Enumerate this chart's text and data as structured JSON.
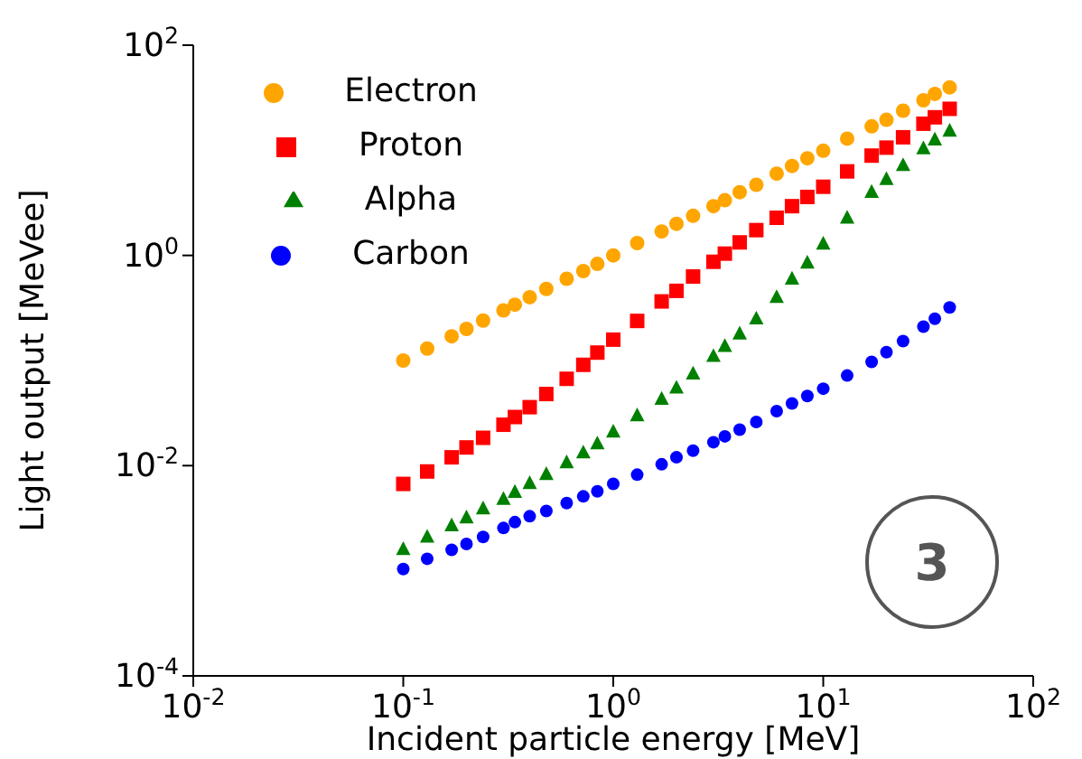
{
  "chart_data": {
    "type": "scatter",
    "xlabel": "Incident particle energy [MeV]",
    "ylabel": "Light output [MeVee]",
    "log": "xy",
    "grid": false,
    "legend": "top left",
    "x": [
      0.1,
      0.13,
      0.17,
      0.2,
      0.24,
      0.3,
      0.34,
      0.4,
      0.48,
      0.6,
      0.72,
      0.84,
      1,
      1.3,
      1.7,
      2,
      2.4,
      3,
      3.4,
      4,
      4.8,
      6,
      7.1,
      8.4,
      10,
      13,
      17,
      20,
      24,
      30,
      34,
      40
    ],
    "xlim": [
      0.01,
      100
    ],
    "xticks": [
      {
        "value": 0.01,
        "label": "10$^{-2}$"
      },
      {
        "value": 0.1,
        "label": "10$^{-1}$"
      },
      {
        "value": 1,
        "label": "10$^{0}$"
      },
      {
        "value": 10,
        "label": "10$^{1}$"
      },
      {
        "value": 100,
        "label": "10$^{2}$"
      }
    ],
    "ylim": [
      0.0001,
      100
    ],
    "yticks": [
      {
        "value": 0.0001,
        "label": "10$^{-4}$"
      },
      {
        "value": 0.01,
        "label": "10$^{-2}$"
      },
      {
        "value": 1,
        "label": "10$^{0}$"
      },
      {
        "value": 100,
        "label": "10$^{2}$"
      }
    ],
    "series": [
      {
        "name": "Electron",
        "color": "#ffa500",
        "marker": "circle",
        "values": [
          0.1,
          0.13,
          0.17,
          0.2,
          0.24,
          0.3,
          0.34,
          0.4,
          0.48,
          0.6,
          0.71,
          0.83,
          1,
          1.31,
          1.69,
          2,
          2.38,
          2.94,
          3.35,
          4,
          4.7,
          6,
          7.1,
          8.4,
          9.9,
          12.9,
          16.9,
          19.5,
          23.8,
          29.9,
          34.4,
          39.7
        ]
      },
      {
        "name": "Proton",
        "color": "#ff0000",
        "marker": "square",
        "values": [
          0.0067,
          0.0088,
          0.012,
          0.0149,
          0.0184,
          0.0245,
          0.029,
          0.036,
          0.048,
          0.067,
          0.091,
          0.119,
          0.158,
          0.238,
          0.365,
          0.46,
          0.63,
          0.87,
          1.04,
          1.33,
          1.74,
          2.28,
          2.94,
          3.6,
          4.5,
          6.3,
          8.9,
          10.6,
          13.3,
          17.9,
          20.6,
          24.8
        ]
      },
      {
        "name": "Alpha",
        "color": "#008000",
        "marker": "triangle",
        "values": [
          0.0016,
          0.0021,
          0.0027,
          0.0032,
          0.0039,
          0.0048,
          0.0056,
          0.0068,
          0.0083,
          0.0107,
          0.0133,
          0.0162,
          0.021,
          0.03,
          0.043,
          0.055,
          0.075,
          0.11,
          0.137,
          0.18,
          0.25,
          0.4,
          0.6,
          0.85,
          1.29,
          2.28,
          4,
          5.3,
          7.2,
          10.4,
          12.6,
          15.3
        ]
      },
      {
        "name": "Carbon",
        "color": "#0000ff",
        "marker": "circle",
        "values": [
          0.00104,
          0.0013,
          0.00158,
          0.0018,
          0.0021,
          0.00255,
          0.0029,
          0.0033,
          0.0037,
          0.0044,
          0.0051,
          0.0057,
          0.0067,
          0.0082,
          0.0103,
          0.012,
          0.0139,
          0.0167,
          0.019,
          0.022,
          0.026,
          0.033,
          0.039,
          0.046,
          0.054,
          0.072,
          0.097,
          0.12,
          0.153,
          0.21,
          0.25,
          0.32
        ]
      }
    ],
    "annotations": [
      "3"
    ]
  }
}
